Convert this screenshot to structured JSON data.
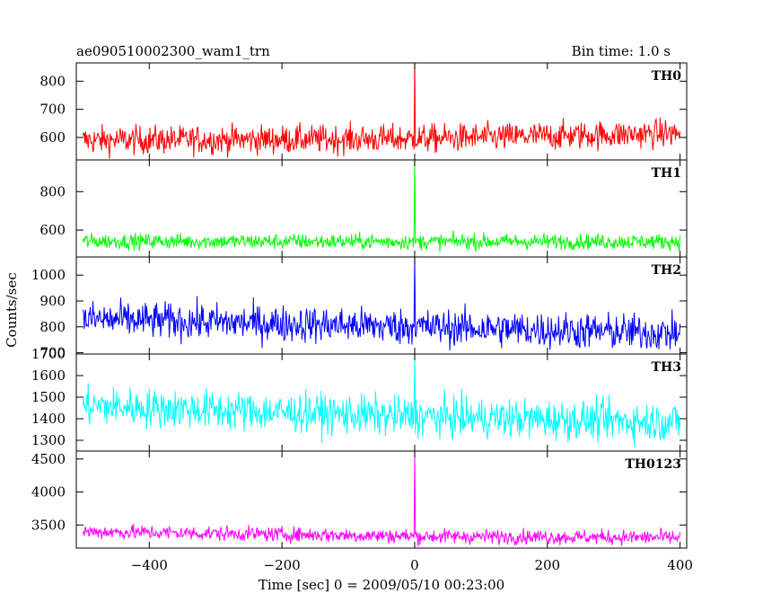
{
  "chart_data": {
    "type": "line",
    "title": "ae090510002300_wam1_trn",
    "bin_time": "Bin time: 1.0 s",
    "xlabel": "Time [sec] 0 = 2009/05/10 00:23:00",
    "ylabel": "Counts/sec",
    "xlim": [
      -510,
      410
    ],
    "x_ticks": [
      -400,
      -200,
      0,
      200,
      400
    ],
    "x_tick_labels": [
      "−400",
      "−200",
      "0",
      "200",
      "400"
    ],
    "series_x_range": [
      -500,
      400
    ],
    "bin_time_sec": 1.0,
    "panels": [
      {
        "name": "TH0",
        "color": "#ff0000",
        "ylim": [
          520,
          865
        ],
        "y_ticks": [
          600,
          700,
          800
        ],
        "y_tick_labels": [
          "600",
          "700",
          "800"
        ],
        "baseline": [
          [
            -500,
            590
          ],
          [
            0,
            595
          ],
          [
            400,
            615
          ]
        ],
        "noise_sd": 25,
        "peak": {
          "x": 0,
          "y": 880
        }
      },
      {
        "name": "TH1",
        "color": "#00ff00",
        "ylim": [
          460,
          965
        ],
        "y_ticks": [
          600,
          800
        ],
        "y_tick_labels": [
          "600",
          "800"
        ],
        "baseline": [
          [
            -500,
            542
          ],
          [
            0,
            540
          ],
          [
            400,
            540
          ]
        ],
        "noise_sd": 20,
        "peak": {
          "x": 0,
          "y": 970
        }
      },
      {
        "name": "TH2",
        "color": "#0000ff",
        "ylim": [
          695,
          1070
        ],
        "y_ticks": [
          700,
          800,
          900,
          1000
        ],
        "y_tick_labels": [
          "700",
          "800",
          "900",
          "1000"
        ],
        "baseline": [
          [
            -500,
            830
          ],
          [
            0,
            800
          ],
          [
            400,
            775
          ]
        ],
        "noise_sd": 35,
        "peak": {
          "x": 0,
          "y": 1075
        }
      },
      {
        "name": "TH3",
        "color": "#00ffff",
        "ylim": [
          1250,
          1700
        ],
        "y_ticks": [
          1300,
          1400,
          1500,
          1600,
          1700
        ],
        "y_tick_labels": [
          "1300",
          "1400",
          "1500",
          "1600",
          "1700"
        ],
        "baseline": [
          [
            -500,
            1460
          ],
          [
            0,
            1410
          ],
          [
            400,
            1385
          ]
        ],
        "noise_sd": 45,
        "peak": {
          "x": 0,
          "y": 1700
        }
      },
      {
        "name": "TH0123",
        "color": "#ff00ff",
        "ylim": [
          3150,
          4620
        ],
        "y_ticks": [
          3500,
          4000,
          4500
        ],
        "y_tick_labels": [
          "3500",
          "4000",
          "4500"
        ],
        "baseline": [
          [
            -500,
            3400
          ],
          [
            0,
            3330
          ],
          [
            400,
            3310
          ]
        ],
        "noise_sd": 55,
        "peak": {
          "x": 0,
          "y": 4620
        }
      }
    ]
  }
}
